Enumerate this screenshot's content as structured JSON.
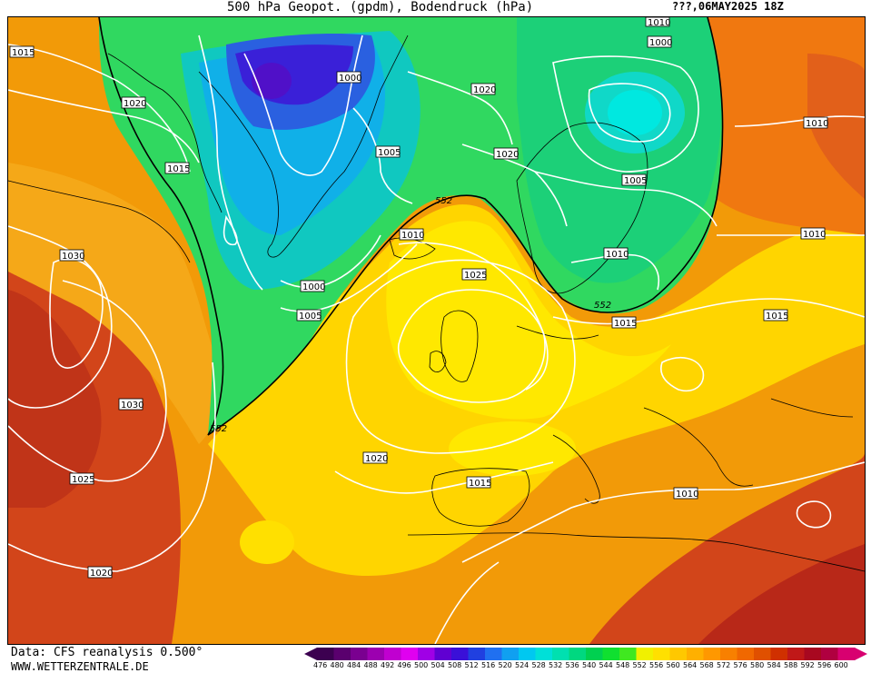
{
  "header": {
    "title": "500 hPa Geopot. (gpdm), Bodendruck (hPa)",
    "date": "???,06MAY2025 18Z"
  },
  "footer": {
    "data_source": "Data: CFS reanalysis 0.500°",
    "website": "WWW.WETTERZENTRALE.DE"
  },
  "legend": {
    "values": [
      "476",
      "480",
      "484",
      "488",
      "492",
      "496",
      "500",
      "504",
      "508",
      "512",
      "516",
      "520",
      "524",
      "528",
      "532",
      "536",
      "540",
      "544",
      "548",
      "552",
      "556",
      "560",
      "564",
      "568",
      "572",
      "576",
      "580",
      "584",
      "588",
      "592",
      "596",
      "600"
    ],
    "colors": [
      "#3c0050",
      "#5a006e",
      "#7a0090",
      "#9c00b0",
      "#c000d0",
      "#e000f0",
      "#a000e6",
      "#6000d2",
      "#3a10d8",
      "#2040e0",
      "#2070f0",
      "#10a0f0",
      "#00c8f0",
      "#00e0d8",
      "#00e0b0",
      "#00d880",
      "#00d050",
      "#10e030",
      "#40e820",
      "#f0f000",
      "#ffe000",
      "#ffc800",
      "#ffb000",
      "#ff9800",
      "#f88000",
      "#f06800",
      "#e05000",
      "#d03000",
      "#c01818",
      "#a80820",
      "#b00040",
      "#d80070"
    ]
  },
  "map": {
    "geopotential_labels": [
      "552",
      "552",
      "552"
    ],
    "pressure_labels": [
      "1015",
      "1020",
      "1015",
      "1030",
      "1030",
      "1025",
      "1020",
      "1000",
      "1000",
      "1005",
      "1005",
      "1010",
      "1025",
      "1020",
      "1015",
      "1020",
      "1020",
      "1010",
      "1000",
      "1005",
      "1010",
      "1010",
      "1010",
      "1010",
      "1015",
      "1015",
      "1010"
    ]
  }
}
